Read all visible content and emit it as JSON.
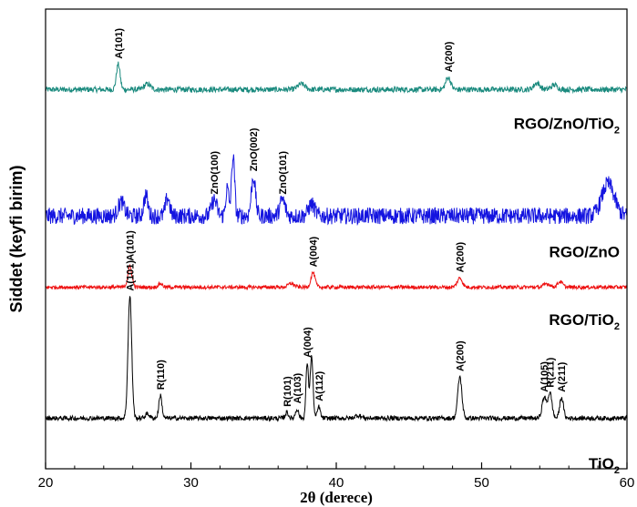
{
  "chart_data": {
    "type": "line",
    "xlabel": "2θ (derece)",
    "ylabel": "Siddet (keyfi birim)",
    "xlim": [
      20,
      60
    ],
    "xticks": [
      20,
      30,
      40,
      50,
      60
    ],
    "y_ticks_shown": false,
    "grid": false,
    "series": [
      {
        "name": "RGO/ZnO/TiO",
        "subscript": "2",
        "color": "#1a8a7e",
        "baseline": 0.825,
        "noise": 0.006,
        "peaks": [
          {
            "x": 25.0,
            "h": 0.055,
            "w": 0.18,
            "label": "A(101)"
          },
          {
            "x": 27.0,
            "h": 0.012,
            "w": 0.3,
            "label": ""
          },
          {
            "x": 37.6,
            "h": 0.012,
            "w": 0.35,
            "label": ""
          },
          {
            "x": 47.7,
            "h": 0.026,
            "w": 0.25,
            "label": "A(200)"
          },
          {
            "x": 53.8,
            "h": 0.014,
            "w": 0.3,
            "label": ""
          },
          {
            "x": 55.0,
            "h": 0.01,
            "w": 0.3,
            "label": ""
          }
        ]
      },
      {
        "name": "RGO/ZnO",
        "subscript": "",
        "color": "#1414e0",
        "baseline": 0.55,
        "noise": 0.018,
        "peaks": [
          {
            "x": 25.2,
            "h": 0.03,
            "w": 0.3,
            "label": ""
          },
          {
            "x": 26.9,
            "h": 0.045,
            "w": 0.2,
            "label": ""
          },
          {
            "x": 28.4,
            "h": 0.04,
            "w": 0.2,
            "label": ""
          },
          {
            "x": 31.6,
            "h": 0.035,
            "w": 0.25,
            "label": "ZnO(100)"
          },
          {
            "x": 32.5,
            "h": 0.06,
            "w": 0.15,
            "label": ""
          },
          {
            "x": 32.9,
            "h": 0.13,
            "w": 0.15,
            "label": ""
          },
          {
            "x": 34.3,
            "h": 0.085,
            "w": 0.2,
            "label": "ZnO(002)"
          },
          {
            "x": 36.3,
            "h": 0.035,
            "w": 0.25,
            "label": "ZnO(101)"
          },
          {
            "x": 38.3,
            "h": 0.025,
            "w": 0.3,
            "label": ""
          },
          {
            "x": 58.7,
            "h": 0.07,
            "w": 0.6,
            "label": ""
          }
        ]
      },
      {
        "name": "RGO/TiO",
        "subscript": "2",
        "color": "#ee1111",
        "baseline": 0.395,
        "noise": 0.004,
        "peaks": [
          {
            "x": 25.8,
            "h": 0.045,
            "w": 0.2,
            "label": "A(101)"
          },
          {
            "x": 27.9,
            "h": 0.008,
            "w": 0.2,
            "label": ""
          },
          {
            "x": 36.9,
            "h": 0.008,
            "w": 0.3,
            "label": ""
          },
          {
            "x": 38.4,
            "h": 0.032,
            "w": 0.2,
            "label": "A(004)"
          },
          {
            "x": 48.5,
            "h": 0.02,
            "w": 0.25,
            "label": "A(200)"
          },
          {
            "x": 54.5,
            "h": 0.008,
            "w": 0.3,
            "label": ""
          },
          {
            "x": 55.4,
            "h": 0.012,
            "w": 0.25,
            "label": ""
          }
        ]
      },
      {
        "name": "TiO",
        "subscript": "2",
        "color": "#000000",
        "baseline": 0.11,
        "noise": 0.005,
        "peaks": [
          {
            "x": 25.8,
            "h": 0.265,
            "w": 0.18,
            "label": "A(101)"
          },
          {
            "x": 27.0,
            "h": 0.01,
            "w": 0.2,
            "label": ""
          },
          {
            "x": 27.9,
            "h": 0.05,
            "w": 0.15,
            "label": "R(110)"
          },
          {
            "x": 36.6,
            "h": 0.013,
            "w": 0.15,
            "label": "R(101)"
          },
          {
            "x": 37.3,
            "h": 0.02,
            "w": 0.15,
            "label": "A(103)"
          },
          {
            "x": 38.0,
            "h": 0.12,
            "w": 0.12,
            "label": "A(004)"
          },
          {
            "x": 38.3,
            "h": 0.135,
            "w": 0.14,
            "label": ""
          },
          {
            "x": 38.8,
            "h": 0.025,
            "w": 0.14,
            "label": "A(112)"
          },
          {
            "x": 41.5,
            "h": 0.006,
            "w": 0.3,
            "label": ""
          },
          {
            "x": 48.5,
            "h": 0.09,
            "w": 0.2,
            "label": "A(200)"
          },
          {
            "x": 54.3,
            "h": 0.045,
            "w": 0.2,
            "label": "A(105)"
          },
          {
            "x": 54.7,
            "h": 0.055,
            "w": 0.2,
            "label": "R(211)"
          },
          {
            "x": 55.5,
            "h": 0.045,
            "w": 0.18,
            "label": "A(211)"
          }
        ]
      }
    ]
  }
}
